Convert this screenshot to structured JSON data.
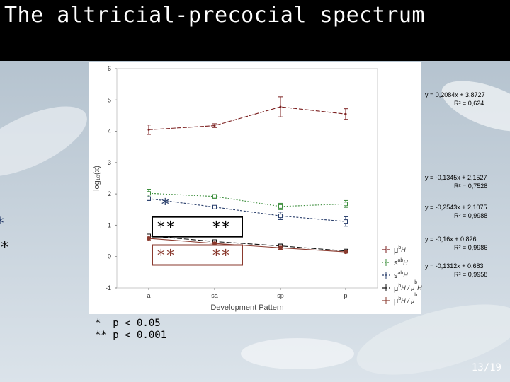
{
  "slide": {
    "title": "The altricial-precocial spectrum",
    "page_number": "13/19",
    "footnotes": [
      "*  p < 0.05",
      "** p < 0.001"
    ]
  },
  "colors": {
    "title_bar": "#000000",
    "chart_background": "#ffffff",
    "series_1": "#7b1f1f",
    "series_2": "#3e8f3e",
    "series_3": "#2a3f6c",
    "series_4": "#111111",
    "series_5": "#8a3a2e",
    "box_black": "#000000",
    "box_red": "#8a3a2e"
  },
  "regressions": [
    {
      "equation": "y = 0,2084x + 3,8727",
      "r2": "R² = 0,624"
    },
    {
      "equation": "y = -0,1345x + 2,1527",
      "r2": "R² = 0,7528"
    },
    {
      "equation": "y = -0,2543x + 2,1075",
      "r2": "R² = 0,9988"
    },
    {
      "equation": "y = -0,16x + 0,826",
      "r2": "R² = 0,9986"
    },
    {
      "equation": "y = -0,1312x + 0,683",
      "r2": "R² = 0,9958"
    }
  ],
  "chart_data": {
    "type": "line",
    "xlabel": "Development Pattern",
    "ylabel": "log₁₀(x)",
    "categories": [
      "a",
      "sa",
      "sp",
      "p"
    ],
    "ylim": [
      -1,
      6
    ],
    "yticks": [
      -1,
      0,
      1,
      2,
      3,
      4,
      5,
      6
    ],
    "grid": false,
    "legend_position": "right",
    "series": [
      {
        "name": "μᵇH",
        "legend_base": "μ",
        "legend_sup": "b",
        "legend_sub": "H",
        "color": "#7b1f1f",
        "values": [
          4.05,
          4.18,
          4.78,
          4.55
        ],
        "errors": [
          0.15,
          0.06,
          0.32,
          0.17
        ],
        "dash": "6,2",
        "marker": "none"
      },
      {
        "name": "sᵃᵇH",
        "legend_base": "s",
        "legend_sup": "ab",
        "legend_sub": "H",
        "color": "#3e8f3e",
        "values": [
          2.02,
          1.92,
          1.6,
          1.68
        ],
        "errors": [
          0.13,
          0.06,
          0.1,
          0.11
        ],
        "dash": "2,2",
        "marker": "square"
      },
      {
        "name": "sᵃᵇH",
        "legend_base": "s",
        "legend_sup": "ab",
        "legend_sub": "H",
        "color": "#2a3f6c",
        "values": [
          1.85,
          1.58,
          1.3,
          1.12
        ],
        "errors": [
          0.06,
          0.04,
          0.12,
          0.15
        ],
        "dash": "3,2",
        "marker": "square"
      },
      {
        "name": "μᵇH / μᵇH",
        "legend_base": "μ",
        "legend_sup": "b",
        "legend_sub": "H / μ",
        "legend_sup2": "b",
        "legend_sub2": "H",
        "color": "#111111",
        "values": [
          0.66,
          0.48,
          0.34,
          0.18
        ],
        "errors": [
          0.05,
          0.04,
          0.06,
          0.04
        ],
        "dash": "7,3",
        "marker": "square"
      },
      {
        "name": "μᵇH / μᵇ",
        "legend_base": "μ",
        "legend_sup": "b",
        "legend_sub": "H / μ",
        "legend_sup2": "b",
        "legend_sub2": "",
        "color": "#8a3a2e",
        "values": [
          0.58,
          0.42,
          0.28,
          0.15
        ],
        "errors": [
          0.05,
          0.04,
          0.05,
          0.04
        ],
        "dash": "",
        "marker": "circle"
      }
    ],
    "annotations": [
      {
        "text": "*",
        "x": 0.25,
        "y": 1.72,
        "color": "#2a3f6c"
      },
      {
        "text": "*",
        "x": 3.3,
        "y": 1.12,
        "color": "#2a3f6c"
      },
      {
        "text": "**",
        "x": 3.2,
        "y": 0.35,
        "color": "#111111"
      }
    ],
    "boxes": [
      {
        "text_left": "**",
        "text_right": "**",
        "y": 0.95,
        "style": "black"
      },
      {
        "text_left": "**",
        "text_right": "**",
        "y": 0.05,
        "style": "red"
      }
    ]
  }
}
